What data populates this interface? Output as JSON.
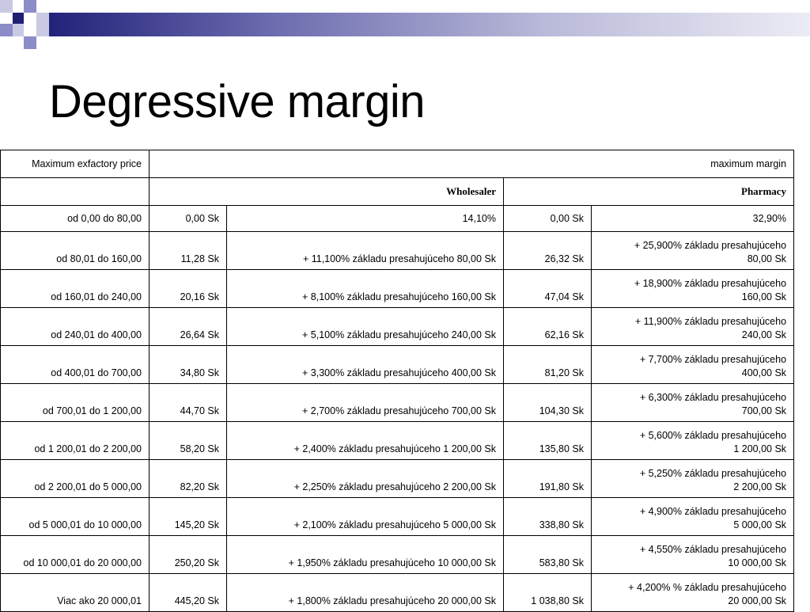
{
  "slide": {
    "title": "Degressive margin"
  },
  "table": {
    "header": {
      "price_col": "Maximum exfactory price",
      "margin_col": "maximum margin",
      "wholesaler": "Wholesaler",
      "pharmacy": "Pharmacy"
    },
    "rows": [
      {
        "range": "od 0,00 do 80,00",
        "w_base": "0,00 Sk",
        "w_rate": "14,10%",
        "p_base": "0,00 Sk",
        "p_rate_1": "32,90%",
        "p_rate_2": ""
      },
      {
        "range": "od 80,01 do 160,00",
        "w_base": "11,28 Sk",
        "w_rate": "+ 11,100% základu presahujúceho 80,00 Sk",
        "p_base": "26,32 Sk",
        "p_rate_1": "+ 25,900% základu presahujúceho",
        "p_rate_2": "80,00 Sk"
      },
      {
        "range": "od 160,01 do 240,00",
        "w_base": "20,16 Sk",
        "w_rate": "+ 8,100% základu presahujúceho 160,00 Sk",
        "p_base": "47,04 Sk",
        "p_rate_1": "+ 18,900% základu presahujúceho",
        "p_rate_2": "160,00 Sk"
      },
      {
        "range": "od 240,01 do 400,00",
        "w_base": "26,64 Sk",
        "w_rate": "+ 5,100% základu presahujúceho 240,00 Sk",
        "p_base": "62,16 Sk",
        "p_rate_1": "+ 11,900% základu presahujúceho",
        "p_rate_2": "240,00 Sk"
      },
      {
        "range": "od 400,01 do 700,00",
        "w_base": "34,80 Sk",
        "w_rate": "+ 3,300% základu presahujúceho 400,00 Sk",
        "p_base": "81,20 Sk",
        "p_rate_1": "+ 7,700% základu presahujúceho",
        "p_rate_2": "400,00 Sk"
      },
      {
        "range": "od 700,01 do 1 200,00",
        "w_base": "44,70 Sk",
        "w_rate": "+ 2,700% základu presahujúceho 700,00 Sk",
        "p_base": "104,30 Sk",
        "p_rate_1": "+ 6,300% základu presahujúceho",
        "p_rate_2": "700,00 Sk"
      },
      {
        "range": "od 1 200,01 do 2 200,00",
        "w_base": "58,20 Sk",
        "w_rate": "+ 2,400% základu presahujúceho 1 200,00 Sk",
        "p_base": "135,80 Sk",
        "p_rate_1": "+ 5,600% základu presahujúceho",
        "p_rate_2": "1 200,00 Sk"
      },
      {
        "range": "od 2 200,01 do 5 000,00",
        "w_base": "82,20 Sk",
        "w_rate": "+ 2,250% základu presahujúceho 2 200,00 Sk",
        "p_base": "191,80 Sk",
        "p_rate_1": "+ 5,250% základu presahujúceho",
        "p_rate_2": "2 200,00 Sk"
      },
      {
        "range": "od 5 000,01 do 10 000,00",
        "w_base": "145,20 Sk",
        "w_rate": "+ 2,100% základu presahujúceho 5 000,00 Sk",
        "p_base": "338,80 Sk",
        "p_rate_1": "+ 4,900% základu presahujúceho",
        "p_rate_2": "5 000,00 Sk"
      },
      {
        "range": "od 10 000,01 do 20 000,00",
        "w_base": "250,20 Sk",
        "w_rate": "+ 1,950% základu presahujúceho 10 000,00 Sk",
        "p_base": "583,80 Sk",
        "p_rate_1": "+ 4,550% základu presahujúceho",
        "p_rate_2": "10 000,00 Sk"
      },
      {
        "range": "Viac ako 20 000,01",
        "w_base": "445,20 Sk",
        "w_rate": "+ 1,800% základu presahujúceho 20 000,00 Sk",
        "p_base": "1 038,80 Sk",
        "p_rate_1": "+ 4,200% % základu presahujúceho",
        "p_rate_2": "20 000,00 Sk"
      }
    ]
  }
}
